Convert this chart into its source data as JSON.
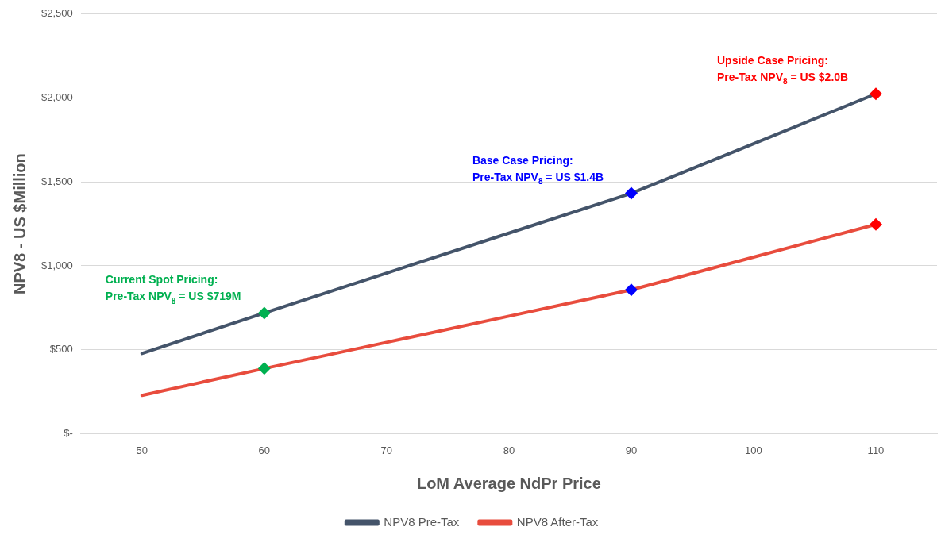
{
  "chart_data": {
    "type": "line",
    "xlabel": "LoM Average NdPr Price",
    "ylabel": "NPV8 - US $Million",
    "categories": [
      "50",
      "60",
      "70",
      "80",
      "90",
      "100",
      "110"
    ],
    "ylim": [
      0,
      2500
    ],
    "yticks": [
      {
        "value": 0,
        "label": "$-"
      },
      {
        "value": 500,
        "label": "$500"
      },
      {
        "value": 1000,
        "label": "$1,000"
      },
      {
        "value": 1500,
        "label": "$1,500"
      },
      {
        "value": 2000,
        "label": "$2,000"
      },
      {
        "value": 2500,
        "label": "$2,500"
      }
    ],
    "grid": "y",
    "legend": "bottom",
    "line_style": "solid",
    "series": [
      {
        "name": "NPV8 Pre-Tax",
        "color": "#44546a",
        "values": [
          478,
          719,
          957,
          1195,
          1432,
          1728,
          2025
        ]
      },
      {
        "name": "NPV8 After-Tax",
        "color": "#e84c3d",
        "values": [
          228,
          388,
          544,
          700,
          857,
          1052,
          1247
        ]
      },
      {
        "type": "scatter",
        "marker": "diamond",
        "x": [
          "60",
          "90",
          "110"
        ],
        "values": [
          719,
          1432,
          2025
        ],
        "colors": [
          "#00b050",
          "#0000ff",
          "#ff0000"
        ]
      },
      {
        "type": "scatter",
        "marker": "diamond",
        "x": [
          "60",
          "90",
          "110"
        ],
        "values": [
          388,
          857,
          1247
        ],
        "colors": [
          "#00b050",
          "#0000ff",
          "#ff0000"
        ]
      }
    ],
    "annotations": [
      {
        "text": "Current Spot Pricing:\nPre-Tax NPV$_{8}$ = US $719M",
        "x": "60",
        "y": 719
      },
      {
        "text": "Base Case Pricing:\nPre-Tax NPV$_{8}$ = US $1.4B",
        "x": "90",
        "y": 1432
      },
      {
        "text": "Upside Case Pricing:\nPre-Tax NPV$_{8}$ = US $2.0B",
        "x": "110",
        "y": 2025
      }
    ]
  }
}
